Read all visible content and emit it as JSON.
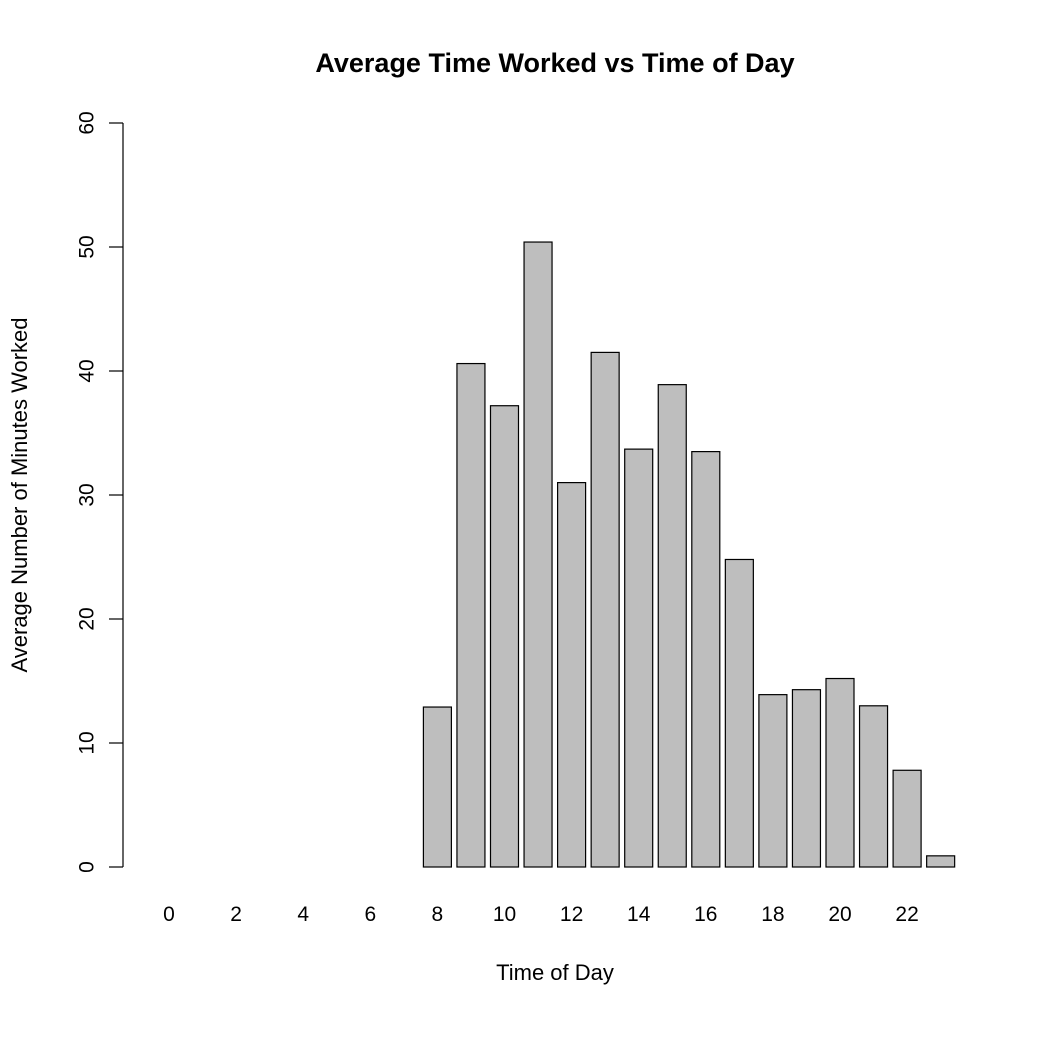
{
  "chart_data": {
    "type": "bar",
    "title": "Average Time Worked vs Time of Day",
    "xlabel": "Time of Day",
    "ylabel": "Average Number of Minutes Worked",
    "ylim": [
      0,
      60
    ],
    "yticks": [
      0,
      10,
      20,
      30,
      40,
      50,
      60
    ],
    "categories": [
      0,
      1,
      2,
      3,
      4,
      5,
      6,
      7,
      8,
      9,
      10,
      11,
      12,
      13,
      14,
      15,
      16,
      17,
      18,
      19,
      20,
      21,
      22,
      23
    ],
    "x_tick_labels": [
      "0",
      "2",
      "4",
      "6",
      "8",
      "10",
      "12",
      "14",
      "16",
      "18",
      "20",
      "22"
    ],
    "x_tick_categories": [
      0,
      2,
      4,
      6,
      8,
      10,
      12,
      14,
      16,
      18,
      20,
      22
    ],
    "values": [
      0,
      0,
      0,
      0,
      0,
      0,
      0,
      0,
      12.9,
      40.6,
      37.2,
      50.4,
      31.0,
      41.5,
      33.7,
      38.9,
      33.5,
      24.8,
      13.9,
      14.3,
      15.2,
      13.0,
      7.8,
      0.9
    ],
    "bar_color": "#bebebe",
    "grid": false,
    "legend": "none"
  }
}
